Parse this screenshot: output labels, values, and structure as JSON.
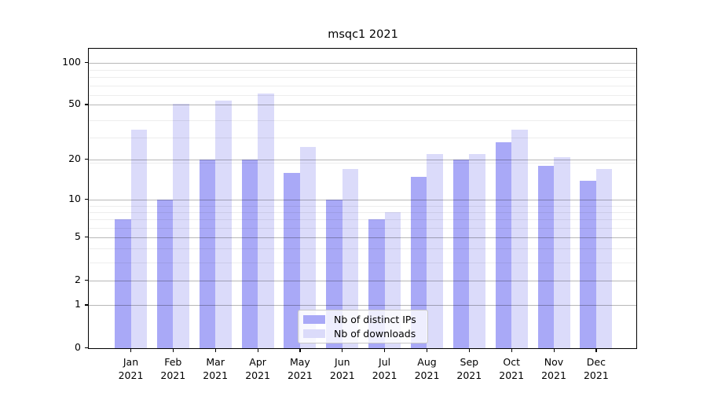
{
  "title": "msqc1 2021",
  "chart_data": {
    "type": "bar",
    "title": "msqc1 2021",
    "categories": [
      "Jan",
      "Feb",
      "Mar",
      "Apr",
      "May",
      "Jun",
      "Jul",
      "Aug",
      "Sep",
      "Oct",
      "Nov",
      "Dec"
    ],
    "year_label": "2021",
    "series": [
      {
        "name": "Nb of distinct IPs",
        "color": "#a9a9f7",
        "values": [
          7,
          10,
          20,
          20,
          16,
          10,
          7,
          15,
          20,
          27,
          18,
          14
        ]
      },
      {
        "name": "Nb of downloads",
        "color": "#dbdbfa",
        "values": [
          33,
          51,
          54,
          60,
          25,
          17,
          8,
          22,
          22,
          33,
          21,
          17
        ]
      }
    ],
    "yscale": "log1p",
    "yticks": [
      0,
      1,
      2,
      5,
      10,
      20,
      50,
      100
    ],
    "minor_yticks": [
      3,
      4,
      6,
      7,
      8,
      9,
      19,
      29,
      39,
      59,
      69,
      79,
      89
    ],
    "ylim": [
      0,
      125
    ],
    "grid": true,
    "legend_position": "lower center"
  },
  "colors": {
    "major_grid": "rgba(0,0,0,0.28)",
    "minor_grid": "rgba(0,0,0,0.07)",
    "spine": "#000000",
    "background": "#ffffff"
  }
}
